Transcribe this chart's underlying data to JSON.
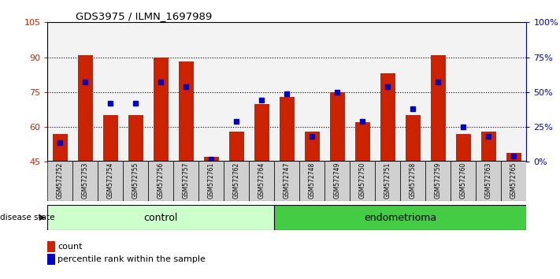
{
  "title": "GDS3975 / ILMN_1697989",
  "samples": [
    "GSM572752",
    "GSM572753",
    "GSM572754",
    "GSM572755",
    "GSM572756",
    "GSM572757",
    "GSM572761",
    "GSM572762",
    "GSM572764",
    "GSM572747",
    "GSM572748",
    "GSM572749",
    "GSM572750",
    "GSM572751",
    "GSM572758",
    "GSM572759",
    "GSM572760",
    "GSM572763",
    "GSM572765"
  ],
  "count_values": [
    57,
    91,
    65,
    65,
    90,
    88,
    47,
    58,
    70,
    73,
    58,
    75,
    62,
    83,
    65,
    91,
    57,
    58,
    49
  ],
  "percentile_values": [
    14,
    57,
    42,
    42,
    57,
    54,
    2,
    29,
    44,
    49,
    18,
    50,
    29,
    54,
    38,
    57,
    25,
    18,
    4
  ],
  "n_control": 9,
  "control_color_light": "#ccffcc",
  "endometrioma_color": "#44cc44",
  "bar_color": "#cc2200",
  "dot_color": "#0000cc",
  "tick_bg_color": "#d0d0d0",
  "ylim_left": [
    45,
    105
  ],
  "ylim_right": [
    0,
    100
  ],
  "yticks_left": [
    45,
    60,
    75,
    90,
    105
  ],
  "yticks_right": [
    0,
    25,
    50,
    75,
    100
  ],
  "ytick_labels_right": [
    "0%",
    "25%",
    "50%",
    "75%",
    "100%"
  ]
}
